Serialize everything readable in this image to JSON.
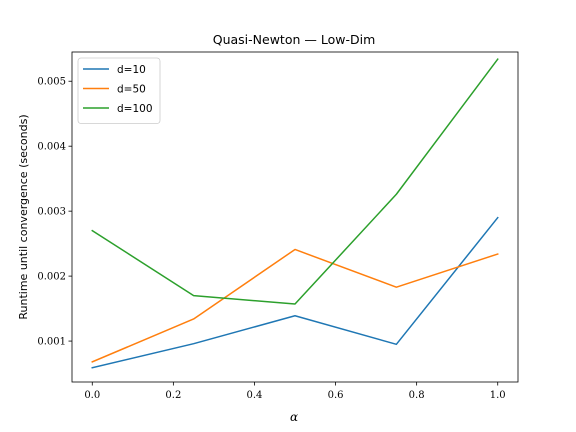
{
  "chart_data": {
    "type": "line",
    "title": "Quasi-Newton — Low-Dim",
    "xlabel": "α",
    "ylabel": "Runtime until convergence (seconds)",
    "x": [
      0.0,
      0.25,
      0.5,
      0.75,
      1.0
    ],
    "xlim": [
      -0.05,
      1.05
    ],
    "ylim": [
      0.00037,
      0.00545
    ],
    "xticks": [
      0.0,
      0.2,
      0.4,
      0.6,
      0.8,
      1.0
    ],
    "xtick_labels": [
      "0.0",
      "0.2",
      "0.4",
      "0.6",
      "0.8",
      "1.0"
    ],
    "yticks": [
      0.001,
      0.002,
      0.003,
      0.004,
      0.005
    ],
    "ytick_labels": [
      "0.001",
      "0.002",
      "0.003",
      "0.004",
      "0.005"
    ],
    "grid": false,
    "legend_position": "top-left",
    "series": [
      {
        "name": "d=10",
        "color": "#1f77b4",
        "values": [
          0.00059,
          0.00096,
          0.00139,
          0.00095,
          0.0029
        ]
      },
      {
        "name": "d=50",
        "color": "#ff7f0e",
        "values": [
          0.00068,
          0.00134,
          0.00241,
          0.00183,
          0.00234
        ]
      },
      {
        "name": "d=100",
        "color": "#2ca02c",
        "values": [
          0.0027,
          0.0017,
          0.00157,
          0.00326,
          0.00534
        ]
      }
    ]
  }
}
